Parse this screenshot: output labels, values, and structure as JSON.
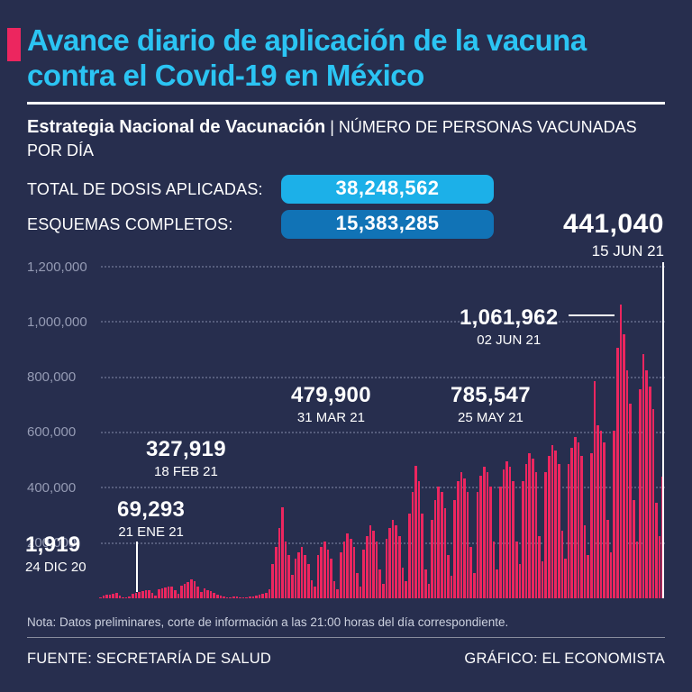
{
  "header": {
    "title": "Avance diario de aplicación de la vacuna contra el Covid-19 en México",
    "subtitle_bold": "Estrategia Nacional de Vacunación",
    "subtitle_separator": " | ",
    "subtitle_rest": "NÚMERO DE PERSONAS VACUNADAS POR DÍA"
  },
  "stats": [
    {
      "label": "TOTAL DE DOSIS APLICADAS:",
      "value": "38,248,562"
    },
    {
      "label": "ESQUEMAS COMPLETOS:",
      "value": "15,383,285"
    }
  ],
  "chart_data": {
    "type": "bar",
    "title": "Avance diario de aplicación de la vacuna contra el Covid-19 en México",
    "ylabel": "NÚMERO DE PERSONAS VACUNADAS POR DÍA",
    "ylim": [
      0,
      1200000
    ],
    "y_ticks": [
      "1,200,000",
      "1,000,000",
      "800,000",
      "600,000",
      "400,000",
      "200,000"
    ],
    "grid": true,
    "x_start_date": "24 DIC 20",
    "x_end_date": "15 JUN 21",
    "annotations": [
      {
        "value": "1,919",
        "date": "24 DIC 20"
      },
      {
        "value": "69,293",
        "date": "21 ENE 21"
      },
      {
        "value": "327,919",
        "date": "18 FEB 21"
      },
      {
        "value": "479,900",
        "date": "31 MAR 21"
      },
      {
        "value": "785,547",
        "date": "25 MAY 21"
      },
      {
        "value": "1,061,962",
        "date": "02 JUN 21"
      },
      {
        "value": "441,040",
        "date": "15 JUN 21"
      }
    ],
    "values": [
      1919,
      9500,
      12000,
      14000,
      16500,
      18000,
      9000,
      2500,
      2000,
      6000,
      15000,
      19000,
      23000,
      26000,
      29000,
      31000,
      21000,
      11000,
      33000,
      36000,
      39000,
      41000,
      43000,
      31000,
      16000,
      46000,
      52000,
      58000,
      69293,
      61000,
      42000,
      22000,
      36000,
      31000,
      26000,
      19000,
      13000,
      9000,
      6000,
      4500,
      3500,
      5500,
      6500,
      4000,
      3000,
      2500,
      5000,
      8000,
      11000,
      13000,
      16000,
      21000,
      32000,
      125000,
      185000,
      255000,
      327919,
      205000,
      155000,
      85000,
      145000,
      165000,
      185000,
      155000,
      125000,
      65000,
      42000,
      155000,
      185000,
      205000,
      175000,
      145000,
      62000,
      32000,
      165000,
      205000,
      235000,
      215000,
      185000,
      92000,
      42000,
      175000,
      225000,
      265000,
      245000,
      205000,
      105000,
      52000,
      215000,
      255000,
      285000,
      265000,
      225000,
      112000,
      62000,
      305000,
      385000,
      479900,
      425000,
      305000,
      105000,
      52000,
      285000,
      355000,
      405000,
      385000,
      325000,
      155000,
      82000,
      355000,
      425000,
      455000,
      435000,
      385000,
      185000,
      92000,
      385000,
      445000,
      475000,
      455000,
      405000,
      205000,
      105000,
      405000,
      465000,
      495000,
      475000,
      425000,
      205000,
      125000,
      425000,
      485000,
      525000,
      505000,
      455000,
      225000,
      135000,
      455000,
      515000,
      555000,
      535000,
      485000,
      245000,
      145000,
      485000,
      545000,
      585000,
      565000,
      515000,
      265000,
      155000,
      525000,
      785547,
      625000,
      605000,
      565000,
      285000,
      165000,
      605000,
      905000,
      1061962,
      955000,
      825000,
      705000,
      355000,
      205000,
      755000,
      885000,
      825000,
      765000,
      685000,
      345000,
      225000,
      441040
    ]
  },
  "footer": {
    "note": "Nota: Datos preliminares, corte de información a las 21:00 horas del día correspondiente.",
    "source": "FUENTE: SECRETARÍA DE SALUD",
    "credit": "GRÁFICO: EL ECONOMISTA"
  },
  "colors": {
    "background": "#272e4e",
    "title_cyan": "#2bc4f3",
    "bar_pink": "#ec265f",
    "badge_light_blue": "#1cb0e8",
    "badge_dark_blue": "#1173b6",
    "grid_gray": "#565d7c",
    "tick_label_gray": "#959bb4",
    "text_white": "#ffffff"
  }
}
